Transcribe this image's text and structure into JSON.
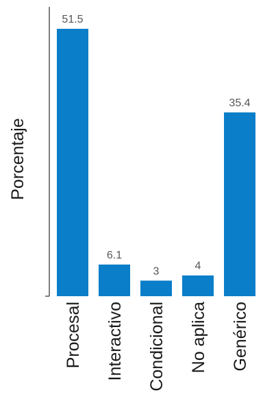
{
  "chart_data": {
    "type": "bar",
    "categories": [
      "Procesal",
      "Interactivo",
      "Condicional",
      "No aplica",
      "Genérico"
    ],
    "values": [
      51.5,
      6.1,
      3,
      4,
      35.4
    ],
    "value_labels": [
      "51.5",
      "6.1",
      "3",
      "4",
      "35.4"
    ],
    "ylabel": "Porcentaje",
    "ylim": [
      0,
      51.5
    ],
    "grid": false,
    "legend": "none",
    "bar_color": "#0a7ec9"
  }
}
